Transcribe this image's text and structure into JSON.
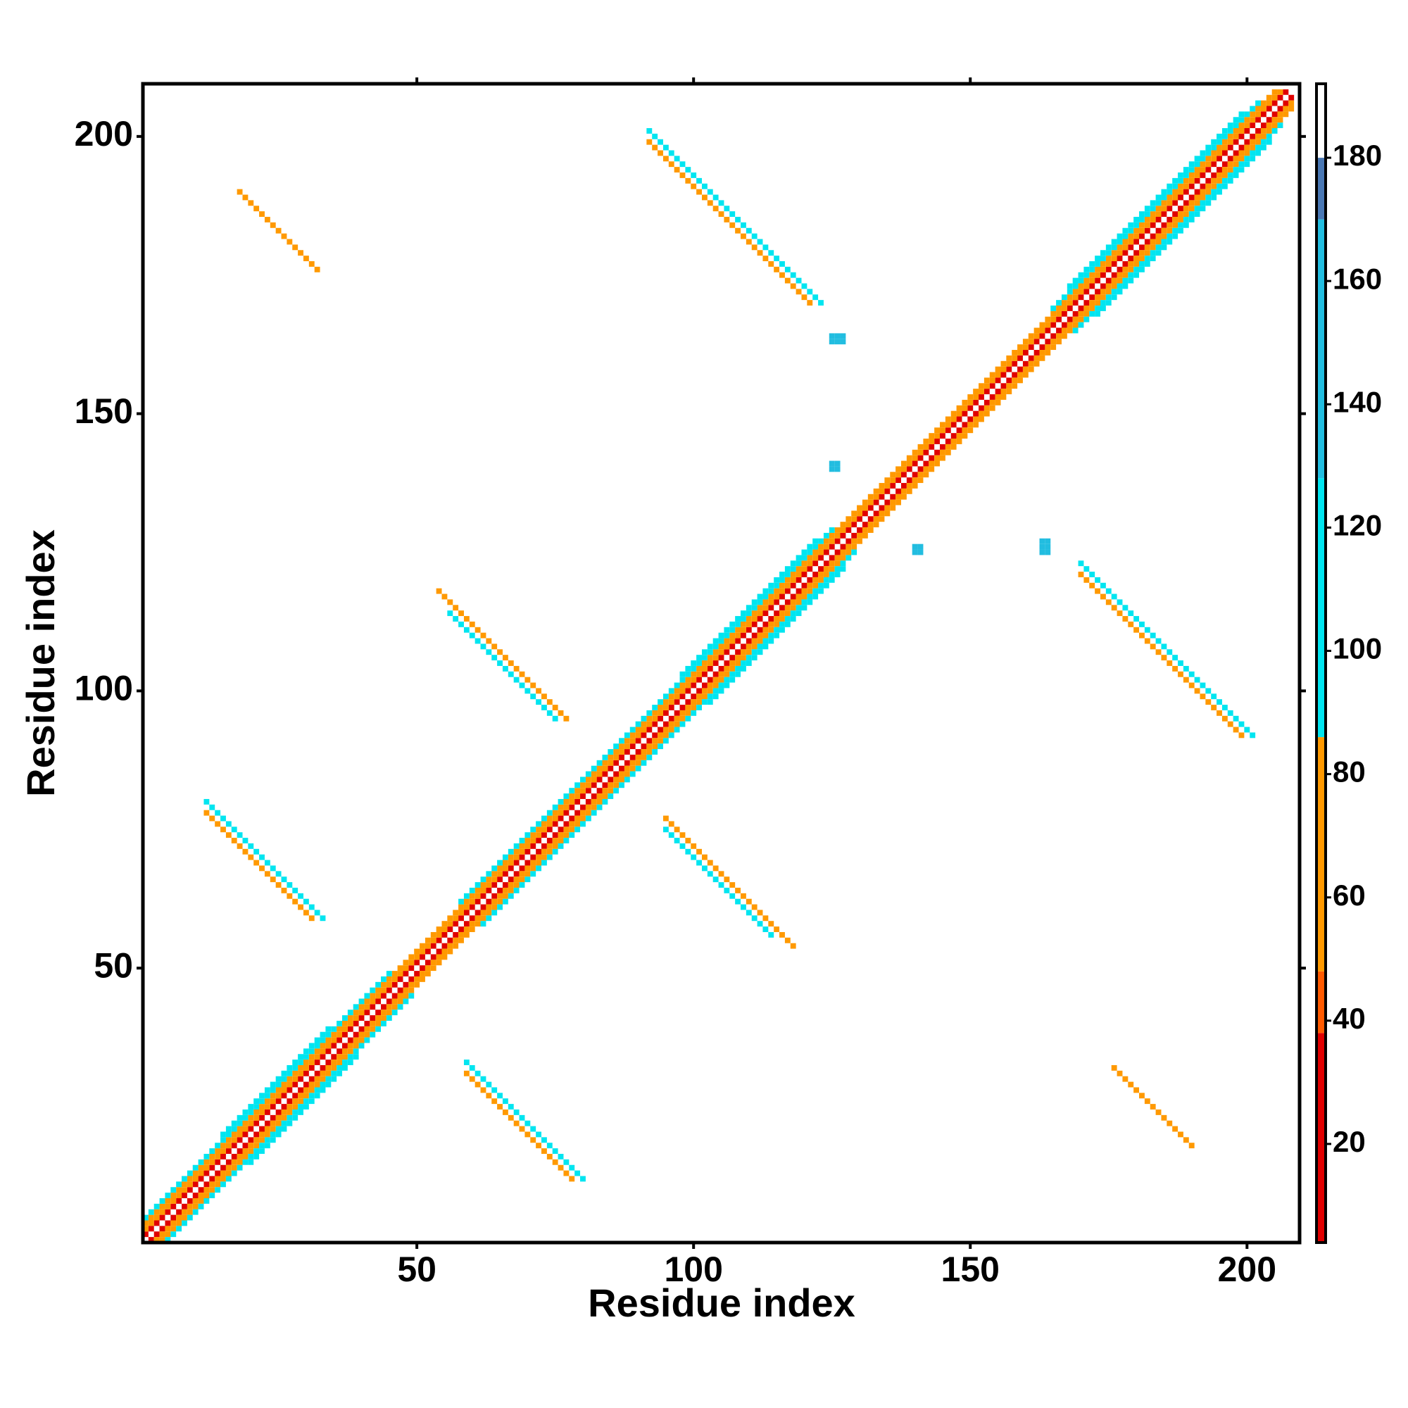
{
  "chart_data": {
    "type": "contact_map",
    "x_label": "Residue index",
    "y_label": "Residue index",
    "xlim": [
      0.5,
      209.5
    ],
    "ylim": [
      0.5,
      209.5
    ],
    "xticks": [
      50,
      100,
      150,
      200
    ],
    "yticks": [
      50,
      100,
      150,
      200
    ],
    "symmetric": true,
    "runs": [
      {
        "start": [
          1,
          2
        ],
        "step": [
          1,
          1
        ],
        "length": 207,
        "value": 25
      },
      {
        "start": [
          1,
          3
        ],
        "step": [
          1,
          1
        ],
        "length": 206,
        "value": 65
      },
      {
        "start": [
          1,
          4
        ],
        "step": [
          1,
          1
        ],
        "length": 205,
        "value": 70
      },
      {
        "start": [
          1,
          5
        ],
        "step": [
          1,
          1
        ],
        "length": 45,
        "value": 100
      },
      {
        "start": [
          58,
          62
        ],
        "step": [
          1,
          1
        ],
        "length": 68,
        "value": 100
      },
      {
        "start": [
          165,
          169
        ],
        "step": [
          1,
          1
        ],
        "length": 38,
        "value": 100
      },
      {
        "start": [
          15,
          20
        ],
        "step": [
          1,
          1
        ],
        "length": 20,
        "value": 110
      },
      {
        "start": [
          98,
          103
        ],
        "step": [
          1,
          1
        ],
        "length": 25,
        "value": 110
      },
      {
        "start": [
          168,
          173
        ],
        "step": [
          1,
          1
        ],
        "length": 32,
        "value": 110
      },
      {
        "start": [
          92,
          201
        ],
        "step": [
          1,
          -1
        ],
        "length": 32,
        "value": 110
      },
      {
        "start": [
          92,
          199
        ],
        "step": [
          1,
          -1
        ],
        "length": 30,
        "value": 70
      },
      {
        "start": [
          18,
          190
        ],
        "step": [
          1,
          -1
        ],
        "length": 15,
        "value": 65
      },
      {
        "start": [
          12,
          80
        ],
        "step": [
          1,
          -1
        ],
        "length": 22,
        "value": 105
      },
      {
        "start": [
          12,
          78
        ],
        "step": [
          1,
          -1
        ],
        "length": 20,
        "value": 70
      },
      {
        "start": [
          54,
          118
        ],
        "step": [
          1,
          -1
        ],
        "length": 24,
        "value": 70
      },
      {
        "start": [
          56,
          114
        ],
        "step": [
          1,
          -1
        ],
        "length": 20,
        "value": 110
      },
      {
        "start": [
          125,
          164
        ],
        "step": [
          1,
          0
        ],
        "length": 3,
        "value": 130
      },
      {
        "start": [
          125,
          163
        ],
        "step": [
          1,
          0
        ],
        "length": 3,
        "value": 130
      },
      {
        "start": [
          125,
          141
        ],
        "step": [
          1,
          0
        ],
        "length": 2,
        "value": 130
      },
      {
        "start": [
          125,
          140
        ],
        "step": [
          1,
          0
        ],
        "length": 2,
        "value": 130
      }
    ],
    "colorbar": {
      "bins": [
        4,
        38,
        48,
        86,
        128,
        170,
        180,
        192
      ],
      "colors": [
        "#e00000",
        "#ff5a00",
        "#ff9900",
        "#00e5f0",
        "#22bde0",
        "#4a78b4",
        "#ffffff"
      ],
      "ticks": [
        20,
        40,
        60,
        80,
        100,
        120,
        140,
        160,
        180
      ]
    }
  }
}
